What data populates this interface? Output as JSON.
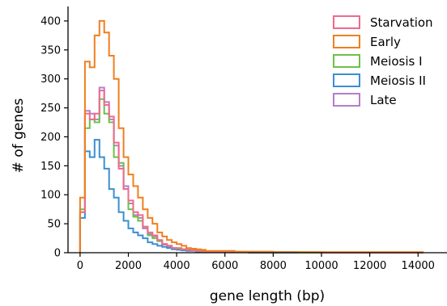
{
  "chart_data": {
    "type": "histogram",
    "title": "",
    "xlabel": "gene length (bp)",
    "ylabel": "# of genes",
    "xlim": [
      -500,
      15200
    ],
    "ylim": [
      0,
      425
    ],
    "x_ticks": [
      0,
      2000,
      4000,
      6000,
      8000,
      10000,
      12000,
      14000
    ],
    "y_ticks": [
      0,
      50,
      100,
      150,
      200,
      250,
      300,
      350,
      400
    ],
    "grid": false,
    "legend_position": "top-right",
    "bin_width": 200,
    "bin_starts": [
      0,
      200,
      400,
      600,
      800,
      1000,
      1200,
      1400,
      1600,
      1800,
      2000,
      2200,
      2400,
      2600,
      2800,
      3000,
      3200,
      3400,
      3600,
      3800,
      4000,
      4200,
      4400,
      4600,
      4800,
      5000,
      5200,
      5400,
      5600,
      5800,
      6000,
      6400,
      7000,
      8000,
      9000,
      10000,
      11000,
      12000,
      13000,
      14000
    ],
    "series": [
      {
        "name": "Starvation",
        "color": "#ee6a8e",
        "values": [
          70,
          240,
          230,
          240,
          280,
          255,
          235,
          190,
          145,
          110,
          90,
          70,
          65,
          45,
          35,
          30,
          22,
          15,
          12,
          8,
          8,
          6,
          5,
          4,
          3,
          3,
          2,
          2,
          2,
          2,
          2,
          1,
          1,
          1,
          1,
          0,
          0,
          0,
          0,
          0
        ]
      },
      {
        "name": "Early",
        "color": "#ef7f1f",
        "values": [
          95,
          330,
          320,
          375,
          400,
          380,
          340,
          300,
          215,
          165,
          135,
          115,
          95,
          75,
          60,
          50,
          35,
          28,
          22,
          18,
          15,
          12,
          8,
          7,
          6,
          5,
          3,
          3,
          3,
          3,
          3,
          2,
          2,
          1,
          1,
          1,
          1,
          1,
          1,
          1
        ]
      },
      {
        "name": "Meiosis I",
        "color": "#6cc04a",
        "values": [
          75,
          215,
          230,
          225,
          265,
          240,
          225,
          165,
          155,
          110,
          75,
          62,
          55,
          45,
          30,
          25,
          20,
          15,
          12,
          8,
          7,
          6,
          5,
          4,
          3,
          2,
          2,
          2,
          2,
          2,
          1,
          1,
          1,
          1,
          0,
          0,
          0,
          0,
          0,
          0
        ]
      },
      {
        "name": "Meiosis II",
        "color": "#3a8fd0",
        "values": [
          60,
          175,
          165,
          195,
          165,
          145,
          110,
          95,
          70,
          55,
          42,
          35,
          30,
          25,
          18,
          15,
          12,
          10,
          8,
          6,
          5,
          4,
          3,
          3,
          2,
          2,
          1,
          1,
          1,
          1,
          1,
          1,
          0,
          0,
          0,
          0,
          0,
          0,
          0,
          0
        ]
      },
      {
        "name": "Late",
        "color": "#b57ec8",
        "values": [
          70,
          245,
          240,
          230,
          285,
          260,
          230,
          185,
          150,
          115,
          85,
          65,
          60,
          42,
          32,
          28,
          20,
          14,
          10,
          8,
          7,
          6,
          5,
          4,
          3,
          2,
          2,
          2,
          2,
          2,
          1,
          1,
          1,
          1,
          0,
          0,
          0,
          0,
          0,
          0
        ]
      }
    ]
  }
}
